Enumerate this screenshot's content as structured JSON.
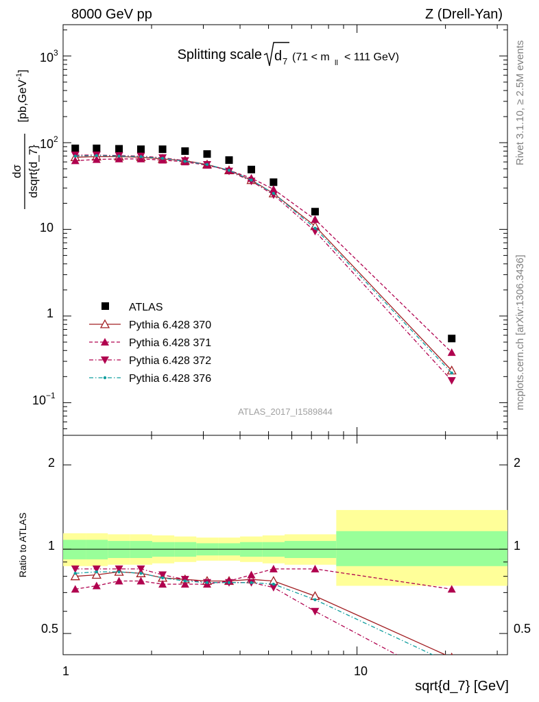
{
  "header": {
    "left": "8000 GeV pp",
    "right": "Z (Drell-Yan)"
  },
  "title": {
    "main": "Splitting scale",
    "symbol": "d",
    "symbol_sub": "7",
    "range_left": "(71 < m",
    "range_sub": "ll",
    "range_right": "< 111 GeV)"
  },
  "side_labels": {
    "rivet": "Rivet 3.1.10, ≥ 2.5M events",
    "mcplots": "mcplots.cern.ch [arXiv:1306.3436]"
  },
  "watermark": "ATLAS_2017_I1589844",
  "axes": {
    "ylabel_main_num": "dσ",
    "ylabel_main_den": "dsqrt{d_7}",
    "ylabel_units": "[pb,GeV",
    "ylabel_units_sup": "-1",
    "ylabel_units_close": "]",
    "ylabel_ratio": "Ratio to ATLAS",
    "xlabel": "sqrt{d_7} [GeV]",
    "x_ticks": [
      "1",
      "10"
    ],
    "y_main_ticks": [
      "10",
      "3",
      "10",
      "2",
      "10",
      "1",
      "10",
      "−1"
    ],
    "y_ratio_ticks": [
      "0.5",
      "1",
      "2"
    ]
  },
  "legend": {
    "entries": [
      "ATLAS",
      "Pythia 6.428 370",
      "Pythia 6.428 371",
      "Pythia 6.428 372",
      "Pythia 6.428 376"
    ]
  },
  "colors": {
    "atlas": "#000000",
    "p370": "#a11d21",
    "p371": "#b0004e",
    "p372": "#b0004e",
    "p376": "#0f9e9e",
    "band_inner": "#99ff99",
    "band_outer": "#ffff99"
  },
  "chart_data": [
    {
      "type": "scatter",
      "xscale": "log",
      "yscale": "log",
      "xlim": [
        1.0,
        32.5
      ],
      "ylim": [
        0.042,
        2300
      ],
      "x": [
        1.1,
        1.3,
        1.55,
        1.84,
        2.18,
        2.6,
        3.09,
        3.67,
        4.37,
        5.2,
        7.2,
        21.0
      ],
      "series": [
        {
          "name": "ATLAS",
          "marker": "square",
          "values": [
            86,
            86,
            85,
            84,
            84,
            80,
            74,
            63,
            49,
            35,
            16,
            0.55
          ]
        },
        {
          "name": "Pythia 6.428 370",
          "marker": "triangle-up-open",
          "values": [
            68,
            69,
            69,
            68,
            65,
            62,
            56,
            48,
            37,
            26,
            10.9,
            0.235
          ]
        },
        {
          "name": "Pythia 6.428 371",
          "marker": "triangle-up",
          "values": [
            62,
            64,
            65,
            65,
            63,
            60,
            55,
            48,
            39,
            29,
            13,
            0.38
          ]
        },
        {
          "name": "Pythia 6.428 372",
          "marker": "triangle-down",
          "values": [
            72,
            72,
            71,
            70,
            67,
            62,
            56,
            47,
            36,
            25,
            9.5,
            0.18
          ]
        },
        {
          "name": "Pythia 6.428 376",
          "marker": "dot",
          "values": [
            70,
            71,
            70,
            69,
            66,
            61,
            56,
            48,
            37,
            26,
            10.3,
            0.22
          ]
        }
      ]
    },
    {
      "type": "line",
      "ylabel": "Ratio to ATLAS",
      "xlabel": "sqrt{d_7} [GeV]",
      "xscale": "log",
      "yscale": "log",
      "xlim": [
        1.0,
        32.5
      ],
      "ylim": [
        0.42,
        2.55
      ],
      "x": [
        1.1,
        1.3,
        1.55,
        1.84,
        2.18,
        2.6,
        3.09,
        3.67,
        4.37,
        5.2,
        7.2,
        21.0
      ],
      "series": [
        {
          "name": "Pythia 6.428 370",
          "values": [
            0.8,
            0.81,
            0.83,
            0.82,
            0.79,
            0.78,
            0.77,
            0.77,
            0.78,
            0.77,
            0.68,
            0.41
          ]
        },
        {
          "name": "Pythia 6.428 371",
          "values": [
            0.72,
            0.74,
            0.77,
            0.77,
            0.75,
            0.75,
            0.75,
            0.77,
            0.81,
            0.85,
            0.85,
            0.72
          ]
        },
        {
          "name": "Pythia 6.428 372",
          "values": [
            0.85,
            0.85,
            0.85,
            0.85,
            0.81,
            0.78,
            0.76,
            0.76,
            0.76,
            0.73,
            0.6,
            0.33
          ]
        },
        {
          "name": "Pythia 6.428 376",
          "values": [
            0.82,
            0.83,
            0.83,
            0.82,
            0.79,
            0.77,
            0.76,
            0.76,
            0.76,
            0.75,
            0.66,
            0.39
          ]
        }
      ],
      "band_edges": [
        1.0,
        1.2,
        1.42,
        1.69,
        2.01,
        2.39,
        2.84,
        3.37,
        4.0,
        4.77,
        5.67,
        8.5,
        32.5
      ],
      "band_inner": [
        [
          0.92,
          1.08
        ],
        [
          0.92,
          1.08
        ],
        [
          0.93,
          1.07
        ],
        [
          0.93,
          1.07
        ],
        [
          0.94,
          1.06
        ],
        [
          0.94,
          1.06
        ],
        [
          0.95,
          1.05
        ],
        [
          0.95,
          1.05
        ],
        [
          0.94,
          1.06
        ],
        [
          0.94,
          1.06
        ],
        [
          0.93,
          1.07
        ],
        [
          0.87,
          1.16
        ]
      ],
      "band_outer": [
        [
          0.87,
          1.14
        ],
        [
          0.87,
          1.14
        ],
        [
          0.88,
          1.13
        ],
        [
          0.88,
          1.13
        ],
        [
          0.89,
          1.12
        ],
        [
          0.9,
          1.11
        ],
        [
          0.91,
          1.1
        ],
        [
          0.91,
          1.1
        ],
        [
          0.9,
          1.11
        ],
        [
          0.89,
          1.12
        ],
        [
          0.88,
          1.13
        ],
        [
          0.74,
          1.38
        ]
      ]
    }
  ]
}
